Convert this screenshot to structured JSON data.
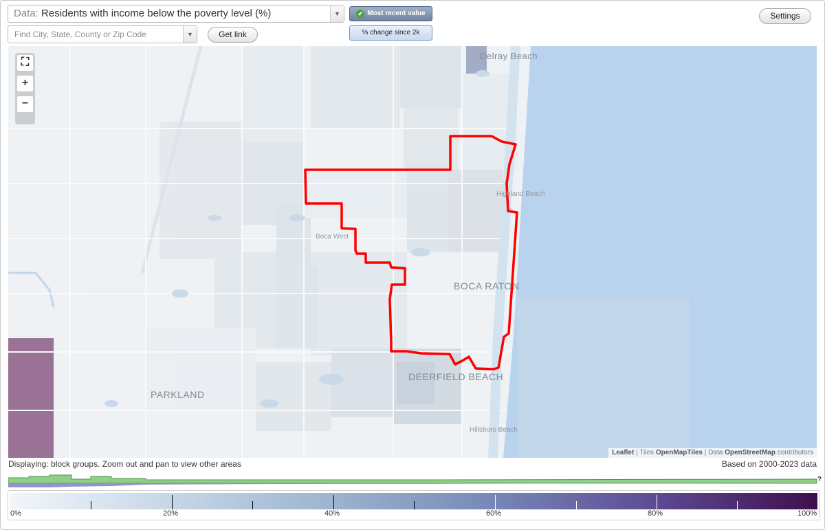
{
  "data_selector": {
    "prefix": "Data:",
    "value": "Residents with income below the poverty level (%)"
  },
  "search": {
    "placeholder": "Find City, State, County or Zip Code"
  },
  "buttons": {
    "get_link": "Get link",
    "settings": "Settings",
    "most_recent": "Most recent value",
    "percent_change": "% change since 2k"
  },
  "zoom": {
    "fit": "⛶",
    "plus": "+",
    "minus": "−"
  },
  "map": {
    "labels": {
      "delray": "Delray Beach",
      "highland": "Highland Beach",
      "boca_west": "Boca West",
      "boca_raton": "BOCA RATON",
      "deerfield": "DEERFIELD BEACH",
      "parkland": "PARKLAND",
      "hillsboro": "Hillsboro Beach"
    },
    "boundary_color": "#ff0000",
    "ocean_color": "#b9d3ee"
  },
  "attribution": {
    "leaflet": "Leaflet",
    "sep1": " | Tiles ",
    "tiles": "OpenMapTiles",
    "sep2": " | Data ",
    "data": "OpenStreetMap",
    "contrib": " contributors"
  },
  "footer": {
    "displaying": "Displaying: block groups. Zoom out and pan to view other areas",
    "based_on": "Based on 2000-2023 data",
    "question": "?"
  },
  "legend": {
    "labels": [
      "0%",
      "20%",
      "40%",
      "60%",
      "80%",
      "100%"
    ]
  }
}
